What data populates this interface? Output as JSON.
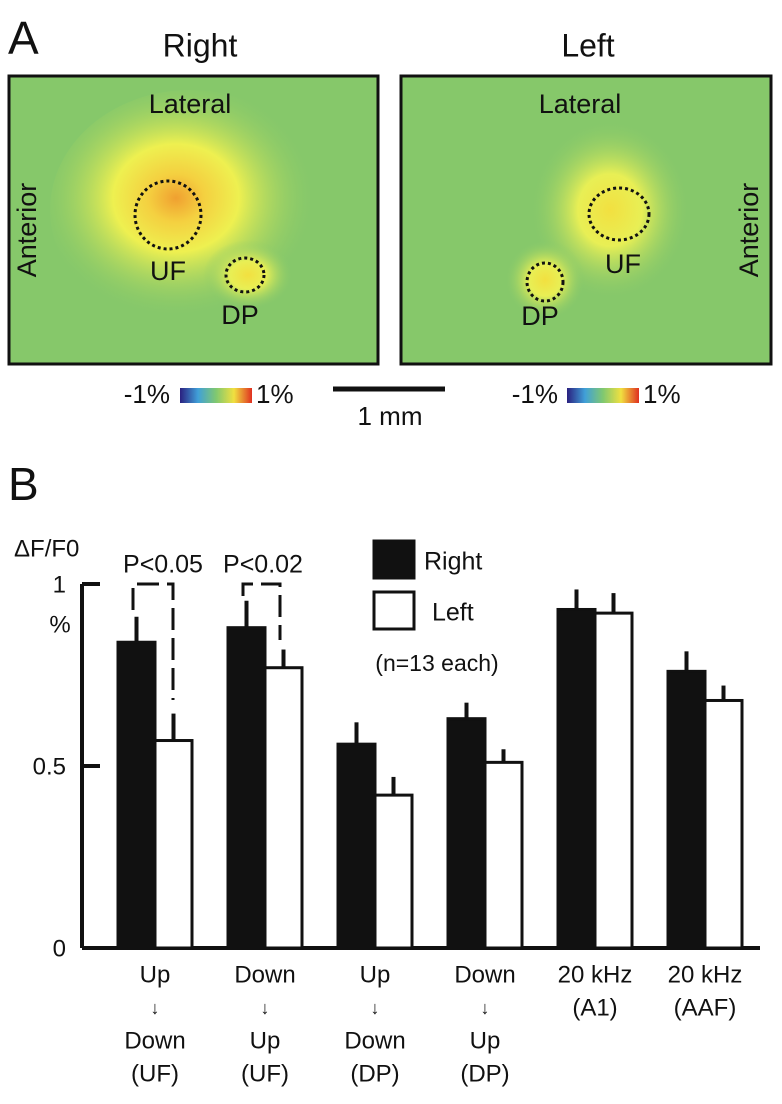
{
  "panel_a": {
    "label": "A",
    "right": {
      "title": "Right",
      "lateral": "Lateral",
      "anterior": "Anterior",
      "uf": "UF",
      "dp": "DP"
    },
    "left": {
      "title": "Left",
      "lateral": "Lateral",
      "anterior": "Anterior",
      "uf": "UF",
      "dp": "DP"
    },
    "colorbar_min": "-1%",
    "colorbar_max": "1%",
    "scale_bar": "1 mm"
  },
  "chart_data": {
    "type": "bar",
    "panel_label": "B",
    "y_label": "ΔF/F0",
    "y_unit": "%",
    "categories": [
      [
        "Up",
        "↓",
        "Down",
        "(UF)"
      ],
      [
        "Down",
        "↓",
        "Up",
        "(UF)"
      ],
      [
        "Up",
        "↓",
        "Down",
        "(DP)"
      ],
      [
        "Down",
        "↓",
        "Up",
        "(DP)"
      ],
      [
        "20 kHz",
        "(A1)"
      ],
      [
        "20 kHz",
        "(AAF)"
      ]
    ],
    "series": [
      {
        "name": "Right",
        "color": "#111111",
        "values": [
          0.84,
          0.88,
          0.56,
          0.63,
          0.93,
          0.76
        ],
        "errors": [
          0.07,
          0.074,
          0.06,
          0.044,
          0.055,
          0.055
        ]
      },
      {
        "name": "Left",
        "color": "#ffffff",
        "values": [
          0.57,
          0.77,
          0.42,
          0.51,
          0.92,
          0.68
        ],
        "errors": [
          0.074,
          0.05,
          0.05,
          0.036,
          0.055,
          0.041
        ]
      }
    ],
    "ylim": [
      0,
      1
    ],
    "yticks": [
      0,
      0.5,
      1
    ],
    "annotations": [
      "P<0.05",
      "P<0.02",
      "(n=13 each)"
    ]
  }
}
